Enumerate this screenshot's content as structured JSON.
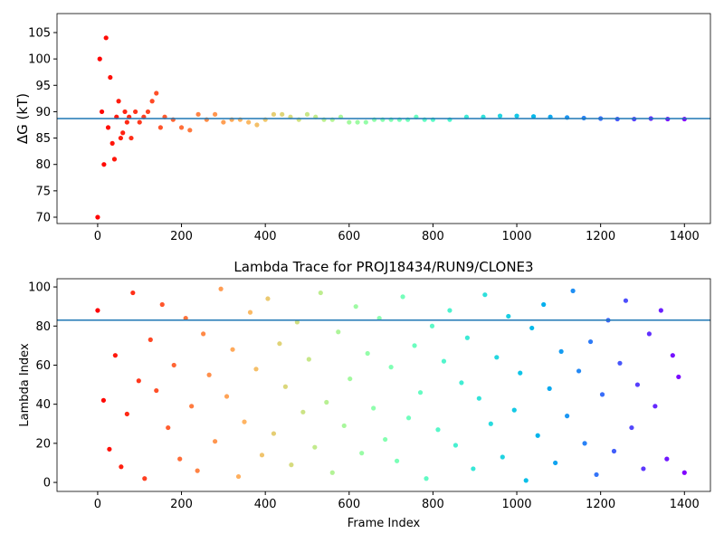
{
  "chart_data": [
    {
      "type": "scatter",
      "ylabel": "ΔG (kT)",
      "colormap": "rainbow_r",
      "hline": 88.7,
      "hline_color": "#1f77b4",
      "xlim": [
        -97,
        1462
      ],
      "ylim": [
        68.8,
        108.6
      ],
      "xticks": [
        0,
        200,
        400,
        600,
        800,
        1000,
        1200,
        1400
      ],
      "yticks": [
        70,
        75,
        80,
        85,
        90,
        95,
        100,
        105
      ],
      "x": [
        0,
        5,
        10,
        15,
        20,
        25,
        30,
        35,
        40,
        45,
        50,
        55,
        60,
        65,
        70,
        75,
        80,
        90,
        100,
        110,
        120,
        130,
        140,
        150,
        160,
        180,
        200,
        220,
        240,
        260,
        280,
        300,
        320,
        340,
        360,
        380,
        400,
        420,
        440,
        460,
        480,
        500,
        520,
        540,
        560,
        580,
        600,
        620,
        640,
        660,
        680,
        700,
        720,
        740,
        760,
        780,
        800,
        840,
        880,
        920,
        960,
        1000,
        1040,
        1080,
        1120,
        1160,
        1200,
        1240,
        1280,
        1320,
        1360,
        1400
      ],
      "values": [
        70,
        100,
        90,
        80,
        104,
        87,
        96.5,
        84,
        81,
        89,
        92,
        85,
        86,
        90,
        88,
        89,
        85,
        90,
        88,
        89,
        90,
        92,
        93.5,
        87,
        89,
        88.5,
        87,
        86.5,
        89.5,
        88.5,
        89.5,
        88,
        88.5,
        88.5,
        88,
        87.5,
        88.5,
        89.5,
        89.5,
        89,
        88.5,
        89.5,
        89,
        88.5,
        88.5,
        89,
        88,
        88,
        88,
        88.5,
        88.5,
        88.5,
        88.5,
        88.5,
        89,
        88.5,
        88.5,
        88.5,
        89,
        89,
        89.2,
        89.2,
        89.1,
        89,
        88.9,
        88.8,
        88.7,
        88.6,
        88.6,
        88.7,
        88.6,
        88.6
      ]
    },
    {
      "type": "scatter",
      "title": "Lambda Trace for PROJ18434/RUN9/CLONE3",
      "xlabel": "Frame Index",
      "ylabel": "Lambda Index",
      "colormap": "rainbow_r",
      "hline": 83,
      "hline_color": "#1f77b4",
      "xlim": [
        -97,
        1462
      ],
      "ylim": [
        -4.6,
        104.2
      ],
      "xticks": [
        0,
        200,
        400,
        600,
        800,
        1000,
        1200,
        1400
      ],
      "yticks": [
        0,
        20,
        40,
        60,
        80,
        100
      ],
      "x": [
        0,
        14,
        28,
        42,
        56,
        70,
        84,
        98,
        112,
        126,
        140,
        154,
        168,
        182,
        196,
        210,
        224,
        238,
        252,
        266,
        280,
        294,
        308,
        322,
        336,
        350,
        364,
        378,
        392,
        406,
        420,
        434,
        448,
        462,
        476,
        490,
        504,
        518,
        532,
        546,
        560,
        574,
        588,
        602,
        616,
        630,
        644,
        658,
        672,
        686,
        700,
        714,
        728,
        742,
        756,
        770,
        784,
        798,
        812,
        826,
        840,
        854,
        868,
        882,
        896,
        910,
        924,
        938,
        952,
        966,
        980,
        994,
        1008,
        1022,
        1036,
        1050,
        1064,
        1078,
        1092,
        1106,
        1120,
        1134,
        1148,
        1162,
        1176,
        1190,
        1204,
        1218,
        1232,
        1246,
        1260,
        1274,
        1288,
        1302,
        1316,
        1330,
        1344,
        1358,
        1372,
        1386,
        1400
      ],
      "values": [
        88,
        42,
        17,
        65,
        8,
        35,
        97,
        52,
        2,
        73,
        47,
        91,
        28,
        60,
        12,
        84,
        39,
        6,
        76,
        55,
        21,
        99,
        44,
        68,
        3,
        31,
        87,
        58,
        14,
        94,
        25,
        71,
        49,
        9,
        82,
        36,
        63,
        18,
        97,
        41,
        5,
        77,
        29,
        53,
        90,
        15,
        66,
        38,
        84,
        22,
        59,
        11,
        95,
        33,
        70,
        46,
        2,
        80,
        27,
        62,
        88,
        19,
        51,
        74,
        7,
        43,
        96,
        30,
        64,
        13,
        85,
        37,
        56,
        1,
        79,
        24,
        91,
        48,
        10,
        67,
        34,
        98,
        57,
        20,
        72,
        4,
        45,
        83,
        16,
        61,
        93,
        28,
        50,
        7,
        76,
        39,
        88,
        12,
        65,
        54,
        5
      ]
    }
  ]
}
